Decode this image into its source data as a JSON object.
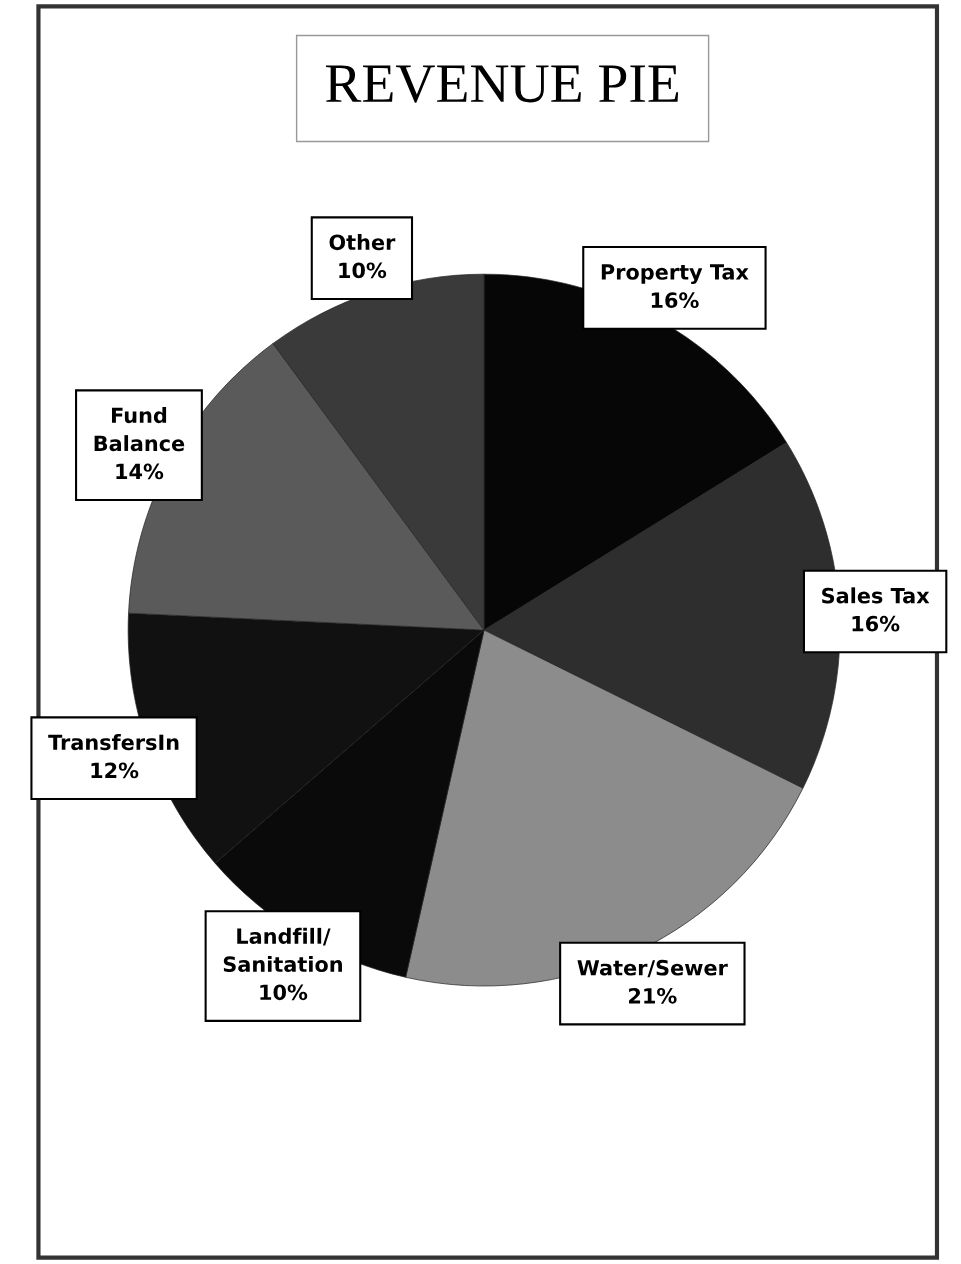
{
  "chart_data": {
    "type": "pie",
    "title": "REVENUE PIE",
    "categories": [
      "Property Tax",
      "Sales Tax",
      "Water/Sewer",
      "Landfill/\nSanitation",
      "TransfersIn",
      "Fund\nBalance",
      "Other"
    ],
    "values": [
      16,
      16,
      21,
      10,
      12,
      14,
      10
    ],
    "value_labels": [
      "16%",
      "16%",
      "21%",
      "10%",
      "12%",
      "14%",
      "10%"
    ],
    "colors": [
      "#060606",
      "#2e2e2e",
      "#8c8c8c",
      "#0a0a0a",
      "#111111",
      "#5a5a5a",
      "#3a3a3a"
    ]
  }
}
